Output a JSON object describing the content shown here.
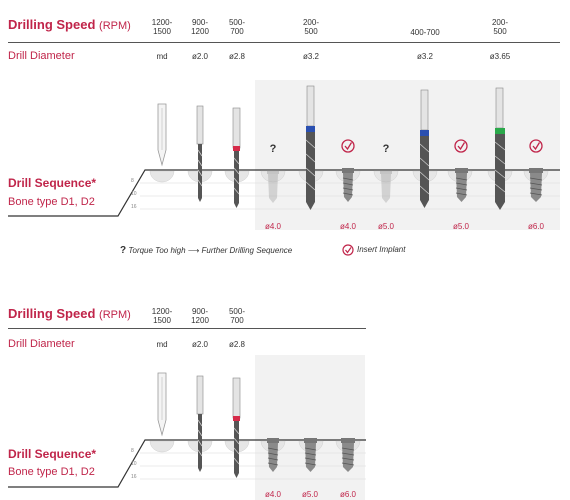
{
  "section1": {
    "title": "Drilling Speed",
    "title_unit": "(RPM)",
    "diameter_label": "Drill Diameter",
    "sequence_title": "Drill Sequence*",
    "bone_type": "Bone type D1, D2",
    "rpm_columns": [
      {
        "line1": "1200-",
        "line2": "1500"
      },
      {
        "line1": "900-",
        "line2": "1200"
      },
      {
        "line1": "500-",
        "line2": "700"
      },
      {
        "line1": "200-",
        "line2": "500"
      },
      {
        "line1": "400-700",
        "line2": ""
      },
      {
        "line1": "200-",
        "line2": "500"
      }
    ],
    "diameters": [
      "md",
      "ø2.0",
      "ø2.8",
      "ø3.2",
      "ø3.2",
      "ø3.65"
    ],
    "depth_marks": [
      "8",
      "10",
      "16"
    ],
    "implant_diameters": [
      "ø4.0",
      "ø4.0",
      "ø5.0",
      "ø5.0",
      "ø6.0"
    ],
    "legend": {
      "question_mark": "?",
      "torque": "Torque Too high",
      "arrow": "⟶",
      "further": "Further Drilling Sequence",
      "insert": "Insert Implant"
    }
  },
  "section2": {
    "title": "Drilling Speed",
    "title_unit": "(RPM)",
    "diameter_label": "Drill Diameter",
    "sequence_title": "Drill Sequence*",
    "bone_type": "Bone type D1, D2",
    "rpm_columns": [
      {
        "line1": "1200-",
        "line2": "1500"
      },
      {
        "line1": "900-",
        "line2": "1200"
      },
      {
        "line1": "500-",
        "line2": "700"
      }
    ],
    "diameters": [
      "md",
      "ø2.0",
      "ø2.8"
    ],
    "depth_marks": [
      "8",
      "10",
      "16"
    ],
    "implant_diameters": [
      "ø4.0",
      "ø5.0",
      "ø6.0"
    ]
  },
  "colors": {
    "accent": "#c0254a",
    "band_red": "#d62b4a",
    "band_blue": "#2a4fb0",
    "band_green": "#2aa84a"
  }
}
